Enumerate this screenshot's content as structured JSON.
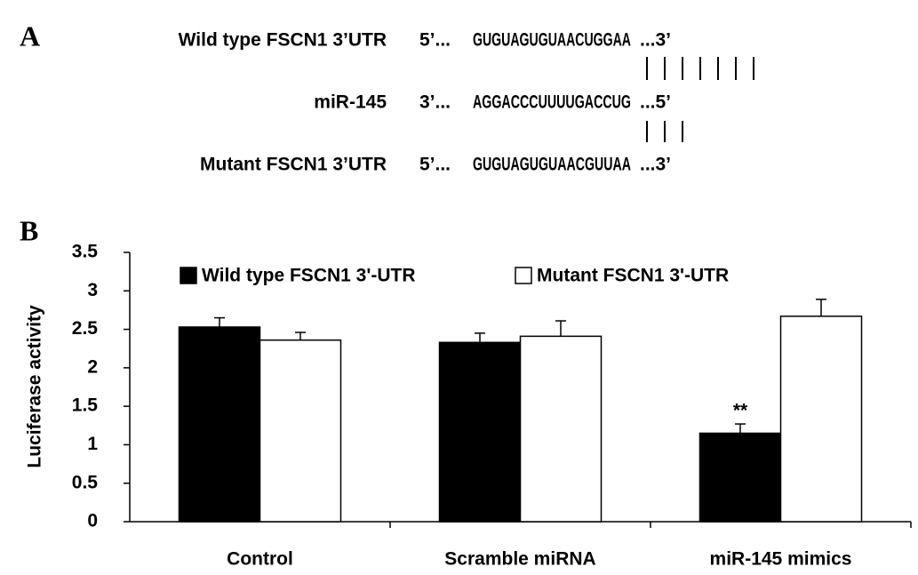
{
  "panel_a": {
    "label": "A",
    "rows": [
      {
        "name": "Wild type FSCN1 3’UTR",
        "left": "5’...",
        "sequence": "GUGUAGUGUAACUGGAA",
        "right": "...3’"
      },
      {
        "name": "miR-145",
        "left": "3’...",
        "sequence": "AGGACCCUUUUGACCUG",
        "right": "...5’"
      },
      {
        "name": "Mutant FSCN1 3’UTR",
        "left": "5’...",
        "sequence": "GUGUAGUGUAACGUUAA",
        "right": "...3’"
      }
    ]
  },
  "chart_data": {
    "type": "bar",
    "panel_label": "B",
    "ylabel": "Luciferase activity",
    "categories": [
      "Control",
      "Scramble miRNA",
      "miR-145 mimics"
    ],
    "series": [
      {
        "name": "Wild type FSCN1 3'-UTR",
        "color": "#000000",
        "values": [
          2.53,
          2.33,
          1.15
        ],
        "errors": [
          0.12,
          0.12,
          0.12
        ],
        "annotations": [
          null,
          null,
          "**"
        ]
      },
      {
        "name": "Mutant FSCN1 3'-UTR",
        "color": "#ffffff",
        "values": [
          2.36,
          2.41,
          2.67
        ],
        "errors": [
          0.1,
          0.2,
          0.22
        ],
        "annotations": [
          null,
          null,
          null
        ]
      }
    ],
    "ylim": [
      0,
      3.5
    ],
    "yticks": [
      0,
      0.5,
      1,
      1.5,
      2,
      2.5,
      3,
      3.5
    ],
    "grid": false,
    "legend": "top"
  }
}
